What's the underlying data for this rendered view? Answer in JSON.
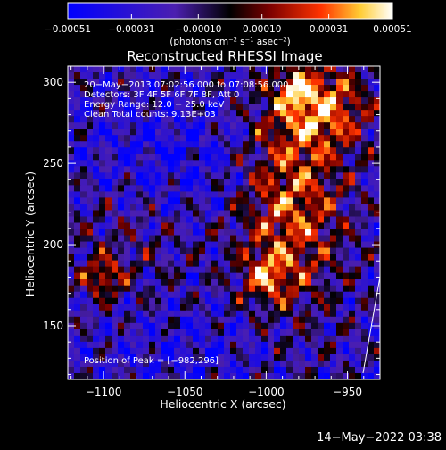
{
  "chart_data": {
    "type": "heatmap",
    "title": "Reconstructed RHESSI Image",
    "xlabel": "Heliocentric X (arcsec)",
    "ylabel": "Heliocentric Y (arcsec)",
    "xlim": [
      -1122,
      -930
    ],
    "ylim": [
      117,
      310
    ],
    "xticks": [
      -1100,
      -1050,
      -1000,
      -950
    ],
    "xtick_labels": [
      "−1100",
      "−1050",
      "−1000",
      "−950"
    ],
    "yticks": [
      150,
      200,
      250,
      300
    ],
    "ytick_labels": [
      "150",
      "200",
      "250",
      "300"
    ],
    "colorbar": {
      "range": [
        -0.00051,
        0.00051
      ],
      "ticks": [
        -0.00051,
        -0.00031,
        -0.0001,
        0.0001,
        0.00031,
        0.00051
      ],
      "tick_labels": [
        "−0.00051",
        "−0.00031",
        "−0.00010",
        "0.00010",
        "0.00031",
        "0.00051"
      ],
      "unit_label": "(photons cm⁻² s⁻¹ asec⁻²)",
      "colors": [
        "#0000ff",
        "#4b1fb0",
        "#000000",
        "#7a0000",
        "#ff3300",
        "#ffcc33",
        "#ffffff"
      ]
    },
    "annotations": [
      "20−May−2013 07:02:56.000 to 07:08:56.000",
      "Detectors: 3F 4F 5F 6F 7F 8F, Att 0",
      "Energy Range: 12.0 − 25.0 keV",
      "Clean     Total counts: 9.13E+03"
    ],
    "peak_label": "Position of Peak = [−982,296]",
    "peak": [
      -982,
      296
    ]
  },
  "footer": {
    "timestamp": "14−May−2022 03:38"
  }
}
